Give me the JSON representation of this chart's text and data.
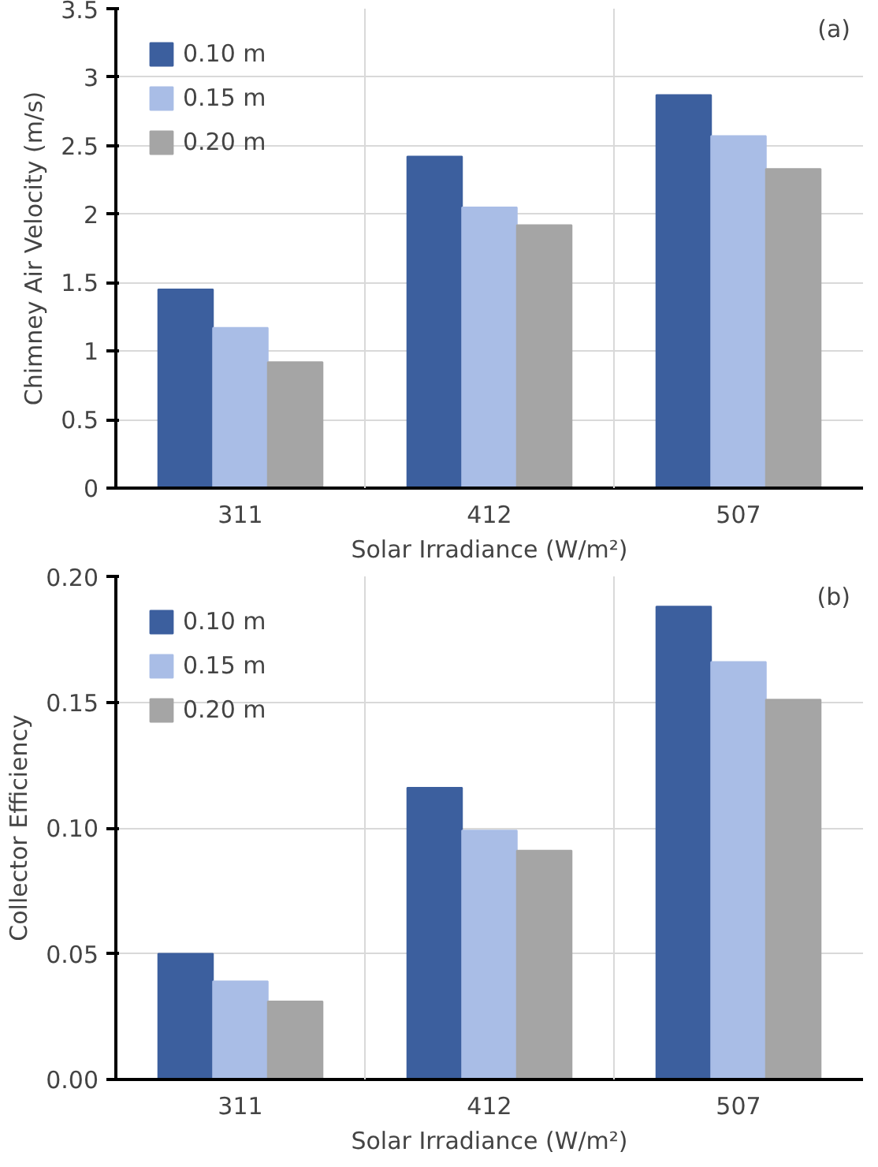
{
  "chart_data": [
    {
      "type": "bar",
      "categories": [
        "311",
        "412",
        "507"
      ],
      "xlabel": "Solar Irradiance (W/m²)",
      "ylabel": "Chimney Air Velocity (m/s)",
      "series": [
        {
          "name": "0.10 m",
          "color": "#3c5f9e",
          "values": [
            1.45,
            2.42,
            2.87
          ]
        },
        {
          "name": "0.15 m",
          "color": "#a9bde6",
          "values": [
            1.17,
            2.05,
            2.57
          ]
        },
        {
          "name": "0.20 m",
          "color": "#a5a5a5",
          "values": [
            0.92,
            1.92,
            2.33
          ]
        }
      ],
      "ylim": [
        0,
        3.5
      ],
      "yticks": [
        0,
        0.5,
        1,
        1.5,
        2,
        2.5,
        3,
        3.5
      ],
      "grid": true,
      "legend": "top left",
      "annotations": [
        "(a)"
      ]
    },
    {
      "type": "bar",
      "categories": [
        "311",
        "412",
        "507"
      ],
      "xlabel": "Solar Irradiance (W/m²)",
      "ylabel": "Collector Efficiency",
      "series": [
        {
          "name": "0.10 m",
          "color": "#3c5f9e",
          "values": [
            0.05,
            0.116,
            0.188
          ]
        },
        {
          "name": "0.15 m",
          "color": "#a9bde6",
          "values": [
            0.039,
            0.099,
            0.166
          ]
        },
        {
          "name": "0.20 m",
          "color": "#a5a5a5",
          "values": [
            0.031,
            0.091,
            0.151
          ]
        }
      ],
      "ylim": [
        0,
        0.2
      ],
      "yticks": [
        {
          "value": 0,
          "label": "0.00"
        },
        {
          "value": 0.05,
          "label": "0.05"
        },
        {
          "value": 0.1,
          "label": "0.10"
        },
        {
          "value": 0.15,
          "label": "0.15"
        },
        {
          "value": 0.2,
          "label": "0.20"
        }
      ],
      "grid": true,
      "legend": "top left",
      "annotations": [
        "(b)"
      ]
    }
  ]
}
